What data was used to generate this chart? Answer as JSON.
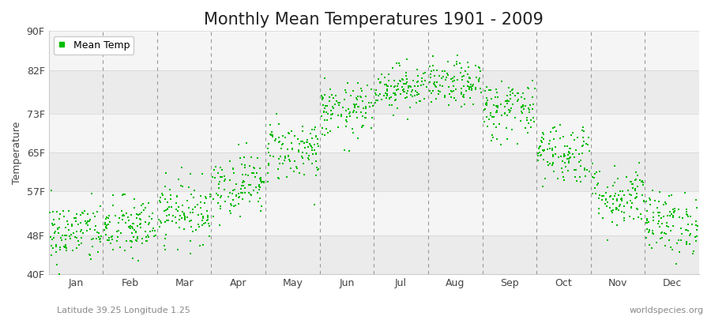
{
  "title": "Monthly Mean Temperatures 1901 - 2009",
  "ylabel": "Temperature",
  "xlabel_labels": [
    "Jan",
    "Feb",
    "Mar",
    "Apr",
    "May",
    "Jun",
    "Jul",
    "Aug",
    "Sep",
    "Oct",
    "Nov",
    "Dec"
  ],
  "ytick_labels": [
    "40F",
    "48F",
    "57F",
    "65F",
    "73F",
    "82F",
    "90F"
  ],
  "ytick_values": [
    40,
    48,
    57,
    65,
    73,
    82,
    90
  ],
  "ylim": [
    40,
    90
  ],
  "dot_color": "#00bb00",
  "dot_size": 3,
  "background_color": "#ffffff",
  "plot_bg_even": "#ebebeb",
  "plot_bg_odd": "#f5f5f5",
  "grid_color": "#aaaaaa",
  "title_fontsize": 15,
  "axis_fontsize": 9,
  "tick_fontsize": 9,
  "legend_label": "Mean Temp",
  "footer_left": "Latitude 39.25 Longitude 1.25",
  "footer_right": "worldspecies.org",
  "year_start": 1901,
  "year_end": 2009,
  "monthly_means_f": [
    48.5,
    49.5,
    53.0,
    58.5,
    65.5,
    73.5,
    78.5,
    79.0,
    74.0,
    65.0,
    56.0,
    50.5
  ],
  "monthly_stds_f": [
    3.2,
    3.2,
    3.2,
    3.2,
    3.2,
    2.8,
    2.3,
    2.3,
    3.2,
    3.2,
    3.2,
    3.2
  ]
}
